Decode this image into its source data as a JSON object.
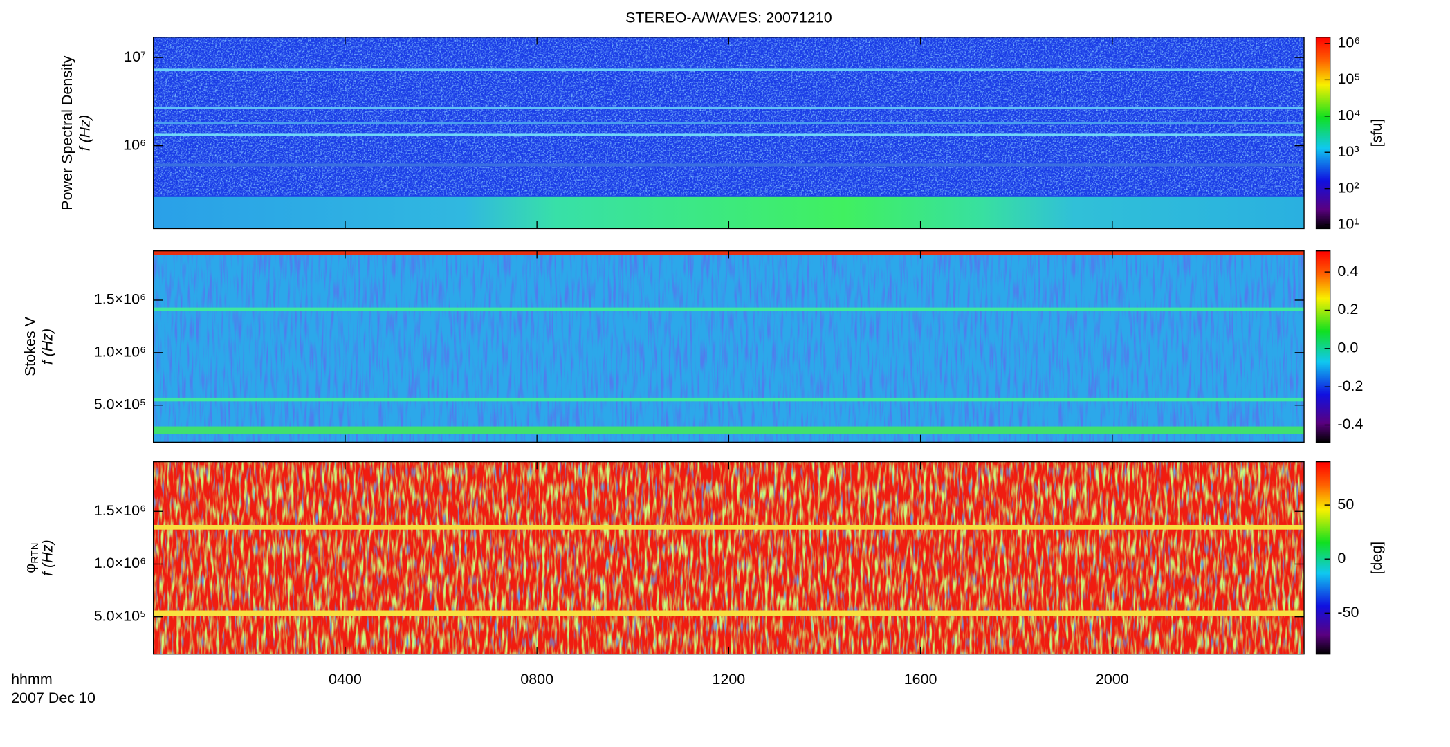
{
  "chart_data": [
    {
      "type": "spectrogram",
      "title": "STEREO-A/WAVES: 20071210",
      "ylabel": "Power Spectral Density",
      "ylabel_unit": "f (Hz)",
      "yscale": "log",
      "ylim": [
        115000,
        17000000
      ],
      "yticks": [
        {
          "value": 1000000,
          "label": "10⁶"
        },
        {
          "value": 10000000,
          "label": "10⁷"
        }
      ],
      "colorbar_label": "[sfu]",
      "cscale": "log",
      "clim": [
        7.9,
        1500000
      ],
      "cticks": [
        {
          "value": 10,
          "label": "10¹"
        },
        {
          "value": 100,
          "label": "10²"
        },
        {
          "value": 1000,
          "label": "10³"
        },
        {
          "value": 10000,
          "label": "10⁴"
        },
        {
          "value": 100000,
          "label": "10⁵"
        },
        {
          "value": 1000000,
          "label": "10⁶"
        }
      ]
    },
    {
      "type": "spectrogram",
      "ylabel": "Stokes V",
      "ylabel_unit": "f (Hz)",
      "yscale": "linear",
      "ylim": [
        146000,
        1970000
      ],
      "yticks": [
        {
          "value": 500000,
          "label": "5.0×10⁵"
        },
        {
          "value": 1000000,
          "label": "1.0×10⁶"
        },
        {
          "value": 1500000,
          "label": "1.5×10⁶"
        }
      ],
      "cscale": "linear",
      "clim": [
        -0.49,
        0.51
      ],
      "cticks": [
        -0.4,
        -0.2,
        {
          "value": 0,
          "label": "0.0"
        },
        0.2,
        0.4
      ]
    },
    {
      "type": "spectrogram",
      "ylabel": "φ",
      "ylabel_sub": "RTN",
      "ylabel_unit": "f (Hz)",
      "yscale": "linear",
      "ylim": [
        146000,
        1970000
      ],
      "yticks": [
        {
          "value": 500000,
          "label": "5.0×10⁵"
        },
        {
          "value": 1000000,
          "label": "1.0×10⁶"
        },
        {
          "value": 1500000,
          "label": "1.5×10⁶"
        }
      ],
      "colorbar_label": "[deg]",
      "cscale": "linear",
      "clim": [
        -88,
        90
      ],
      "cticks": [
        -50,
        0,
        50
      ],
      "xlabel": "hhmm",
      "date": "2007 Dec 10",
      "xlim": [
        0,
        24
      ],
      "xticks": [
        {
          "value": 4,
          "label": "0400"
        },
        {
          "value": 8,
          "label": "0800"
        },
        {
          "value": 12,
          "label": "1200"
        },
        {
          "value": 16,
          "label": "1600"
        },
        {
          "value": 20,
          "label": "2000"
        }
      ]
    }
  ]
}
